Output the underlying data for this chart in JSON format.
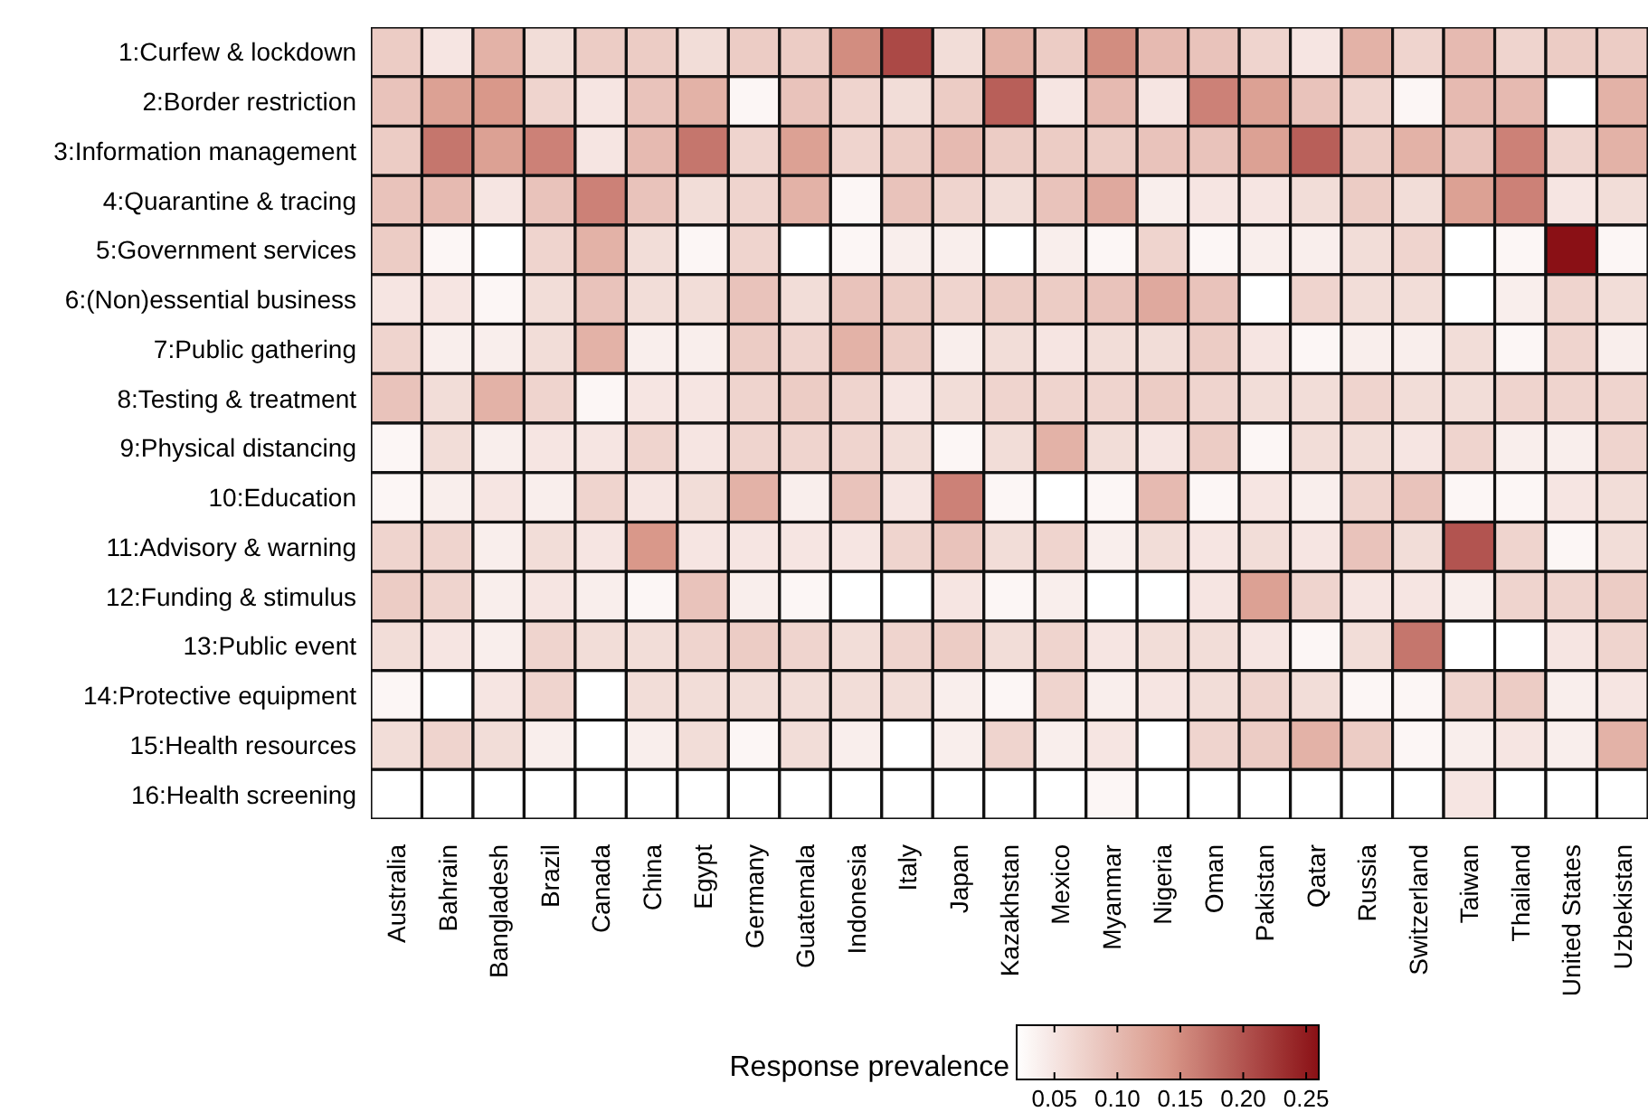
{
  "chart_data": {
    "type": "heatmap",
    "categories": [
      "Australia",
      "Bahrain",
      "Bangladesh",
      "Brazil",
      "Canada",
      "China",
      "Egypt",
      "Germany",
      "Guatemala",
      "Indonesia",
      "Italy",
      "Japan",
      "Kazakhstan",
      "Mexico",
      "Myanmar",
      "Nigeria",
      "Oman",
      "Pakistan",
      "Qatar",
      "Russia",
      "Switzerland",
      "Taiwan",
      "Thailand",
      "United States",
      "Uzbekistan"
    ],
    "y_categories": [
      "1:Curfew & lockdown",
      "2:Border restriction",
      "3:Information management",
      "4:Quarantine & tracing",
      "5:Government services",
      "6:(Non)essential business",
      "7:Public gathering",
      "8:Testing & treatment",
      "9:Physical distancing",
      "10:Education",
      "11:Advisory & warning",
      "12:Funding & stimulus",
      "13:Public event",
      "14:Protective equipment",
      "15:Health resources",
      "16:Health screening"
    ],
    "cells": [
      [
        0.08,
        0.05,
        0.11,
        0.06,
        0.08,
        0.08,
        0.06,
        0.08,
        0.08,
        0.15,
        0.21,
        0.06,
        0.11,
        0.08,
        0.15,
        0.1,
        0.09,
        0.07,
        0.05,
        0.11,
        0.07,
        0.1,
        0.07,
        0.08,
        0.08
      ],
      [
        0.09,
        0.13,
        0.14,
        0.07,
        0.05,
        0.09,
        0.11,
        0.03,
        0.09,
        0.07,
        0.06,
        0.08,
        0.19,
        0.05,
        0.1,
        0.05,
        0.16,
        0.13,
        0.09,
        0.07,
        0.03,
        0.1,
        0.1,
        0.02,
        0.11
      ],
      [
        0.08,
        0.17,
        0.13,
        0.16,
        0.05,
        0.1,
        0.17,
        0.07,
        0.13,
        0.07,
        0.08,
        0.1,
        0.08,
        0.08,
        0.08,
        0.09,
        0.09,
        0.13,
        0.19,
        0.08,
        0.11,
        0.09,
        0.16,
        0.07,
        0.11
      ],
      [
        0.09,
        0.1,
        0.05,
        0.09,
        0.16,
        0.09,
        0.06,
        0.07,
        0.11,
        0.03,
        0.09,
        0.07,
        0.06,
        0.09,
        0.12,
        0.04,
        0.05,
        0.05,
        0.06,
        0.08,
        0.06,
        0.13,
        0.16,
        0.05,
        0.06
      ],
      [
        0.08,
        0.03,
        0.02,
        0.07,
        0.11,
        0.06,
        0.03,
        0.07,
        0.02,
        0.03,
        0.04,
        0.04,
        0.02,
        0.04,
        0.03,
        0.07,
        0.03,
        0.04,
        0.04,
        0.06,
        0.07,
        0.02,
        0.03,
        0.26,
        0.03
      ],
      [
        0.05,
        0.05,
        0.03,
        0.06,
        0.09,
        0.06,
        0.06,
        0.09,
        0.06,
        0.09,
        0.08,
        0.07,
        0.08,
        0.08,
        0.09,
        0.12,
        0.09,
        0.02,
        0.07,
        0.06,
        0.06,
        0.02,
        0.04,
        0.07,
        0.06
      ],
      [
        0.07,
        0.04,
        0.04,
        0.06,
        0.11,
        0.04,
        0.04,
        0.08,
        0.07,
        0.11,
        0.08,
        0.04,
        0.06,
        0.05,
        0.06,
        0.06,
        0.08,
        0.05,
        0.03,
        0.04,
        0.04,
        0.06,
        0.03,
        0.07,
        0.04
      ],
      [
        0.09,
        0.06,
        0.11,
        0.07,
        0.03,
        0.05,
        0.05,
        0.07,
        0.08,
        0.07,
        0.05,
        0.06,
        0.07,
        0.07,
        0.07,
        0.08,
        0.07,
        0.06,
        0.06,
        0.07,
        0.06,
        0.06,
        0.07,
        0.07,
        0.07
      ],
      [
        0.03,
        0.06,
        0.04,
        0.05,
        0.05,
        0.07,
        0.05,
        0.07,
        0.07,
        0.07,
        0.06,
        0.03,
        0.06,
        0.11,
        0.06,
        0.05,
        0.08,
        0.03,
        0.06,
        0.06,
        0.05,
        0.07,
        0.04,
        0.04,
        0.07
      ],
      [
        0.03,
        0.04,
        0.05,
        0.04,
        0.07,
        0.05,
        0.06,
        0.11,
        0.04,
        0.09,
        0.05,
        0.16,
        0.03,
        0.02,
        0.03,
        0.1,
        0.03,
        0.05,
        0.04,
        0.07,
        0.09,
        0.03,
        0.03,
        0.05,
        0.06
      ],
      [
        0.07,
        0.07,
        0.04,
        0.06,
        0.05,
        0.14,
        0.05,
        0.05,
        0.05,
        0.05,
        0.07,
        0.09,
        0.06,
        0.07,
        0.04,
        0.06,
        0.05,
        0.06,
        0.05,
        0.09,
        0.06,
        0.2,
        0.07,
        0.03,
        0.06
      ],
      [
        0.08,
        0.07,
        0.04,
        0.05,
        0.04,
        0.03,
        0.09,
        0.04,
        0.03,
        0.02,
        0.02,
        0.05,
        0.03,
        0.04,
        0.02,
        0.02,
        0.05,
        0.13,
        0.07,
        0.05,
        0.05,
        0.04,
        0.07,
        0.07,
        0.08
      ],
      [
        0.06,
        0.05,
        0.04,
        0.07,
        0.06,
        0.06,
        0.07,
        0.08,
        0.07,
        0.06,
        0.07,
        0.08,
        0.06,
        0.07,
        0.05,
        0.06,
        0.06,
        0.05,
        0.03,
        0.06,
        0.17,
        0.02,
        0.02,
        0.05,
        0.07
      ],
      [
        0.03,
        0.02,
        0.05,
        0.07,
        0.02,
        0.06,
        0.06,
        0.06,
        0.06,
        0.06,
        0.06,
        0.04,
        0.03,
        0.07,
        0.04,
        0.05,
        0.06,
        0.07,
        0.06,
        0.03,
        0.03,
        0.07,
        0.08,
        0.04,
        0.05
      ],
      [
        0.06,
        0.07,
        0.06,
        0.04,
        0.02,
        0.04,
        0.06,
        0.03,
        0.06,
        0.04,
        0.02,
        0.04,
        0.07,
        0.04,
        0.05,
        0.02,
        0.07,
        0.08,
        0.11,
        0.08,
        0.03,
        0.04,
        0.05,
        0.04,
        0.11
      ],
      [
        0.02,
        0.02,
        0.02,
        0.02,
        0.02,
        0.02,
        0.02,
        0.02,
        0.02,
        0.02,
        0.02,
        0.02,
        0.02,
        0.02,
        0.03,
        0.02,
        0.02,
        0.02,
        0.02,
        0.02,
        0.02,
        0.05,
        0.02,
        0.02,
        0.02
      ]
    ],
    "clim": [
      0.02,
      0.26
    ],
    "cticks": [
      0.05,
      {
        "value": 0.1,
        "label": "0.10"
      },
      0.15,
      {
        "value": 0.2,
        "label": "0.20"
      },
      0.25
    ],
    "clabel": "Response prevalence"
  }
}
